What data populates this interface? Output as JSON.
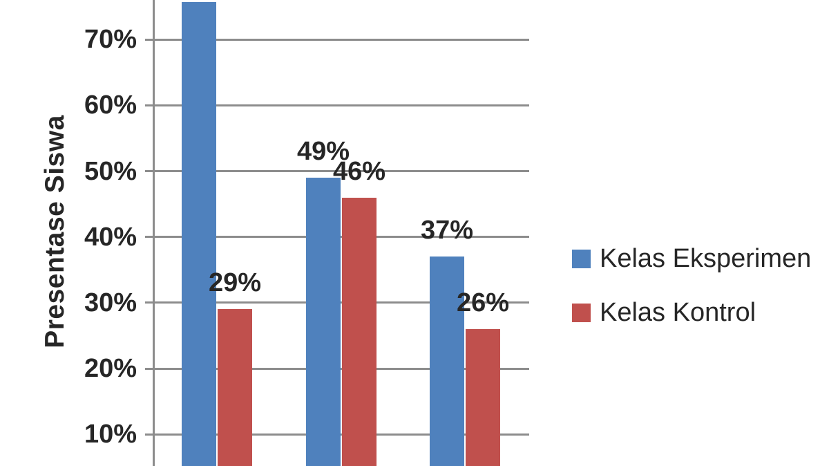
{
  "chart_data": {
    "type": "bar",
    "title": "",
    "xlabel": "",
    "ylabel": "Presentase Siswa",
    "categories": [
      "",
      "",
      ""
    ],
    "series": [
      {
        "name": "Kelas Eksperimen",
        "color": "#4F81BD",
        "values": [
          75.7,
          49,
          37
        ],
        "data_labels": [
          "",
          "49%",
          "37%"
        ]
      },
      {
        "name": "Kelas Kontrol",
        "color": "#C0504D",
        "values": [
          29,
          46,
          26
        ],
        "data_labels": [
          "29%",
          "46%",
          "26%"
        ]
      }
    ],
    "y_axis": {
      "unit": "%",
      "gridlines": true,
      "visible_range_pct": [
        5,
        76
      ],
      "ticks": [
        {
          "value": 70,
          "label": "70%"
        },
        {
          "value": 60,
          "label": "60%"
        },
        {
          "value": 50,
          "label": "50%"
        },
        {
          "value": 40,
          "label": "40%"
        },
        {
          "value": 30,
          "label": "30%"
        },
        {
          "value": 20,
          "label": "20%"
        },
        {
          "value": 10,
          "label": "10%"
        }
      ]
    },
    "legend": {
      "position": "right"
    },
    "colors": {
      "grid": "#8c8c8c",
      "axis": "#8c8c8c",
      "text": "#262626",
      "background": "#ffffff"
    },
    "crop_note": "Image is cropped: x-axis category labels, 0% baseline and the value label of the first (tallest) blue bar are outside the frame; first blue bar value estimated from gridlines."
  }
}
